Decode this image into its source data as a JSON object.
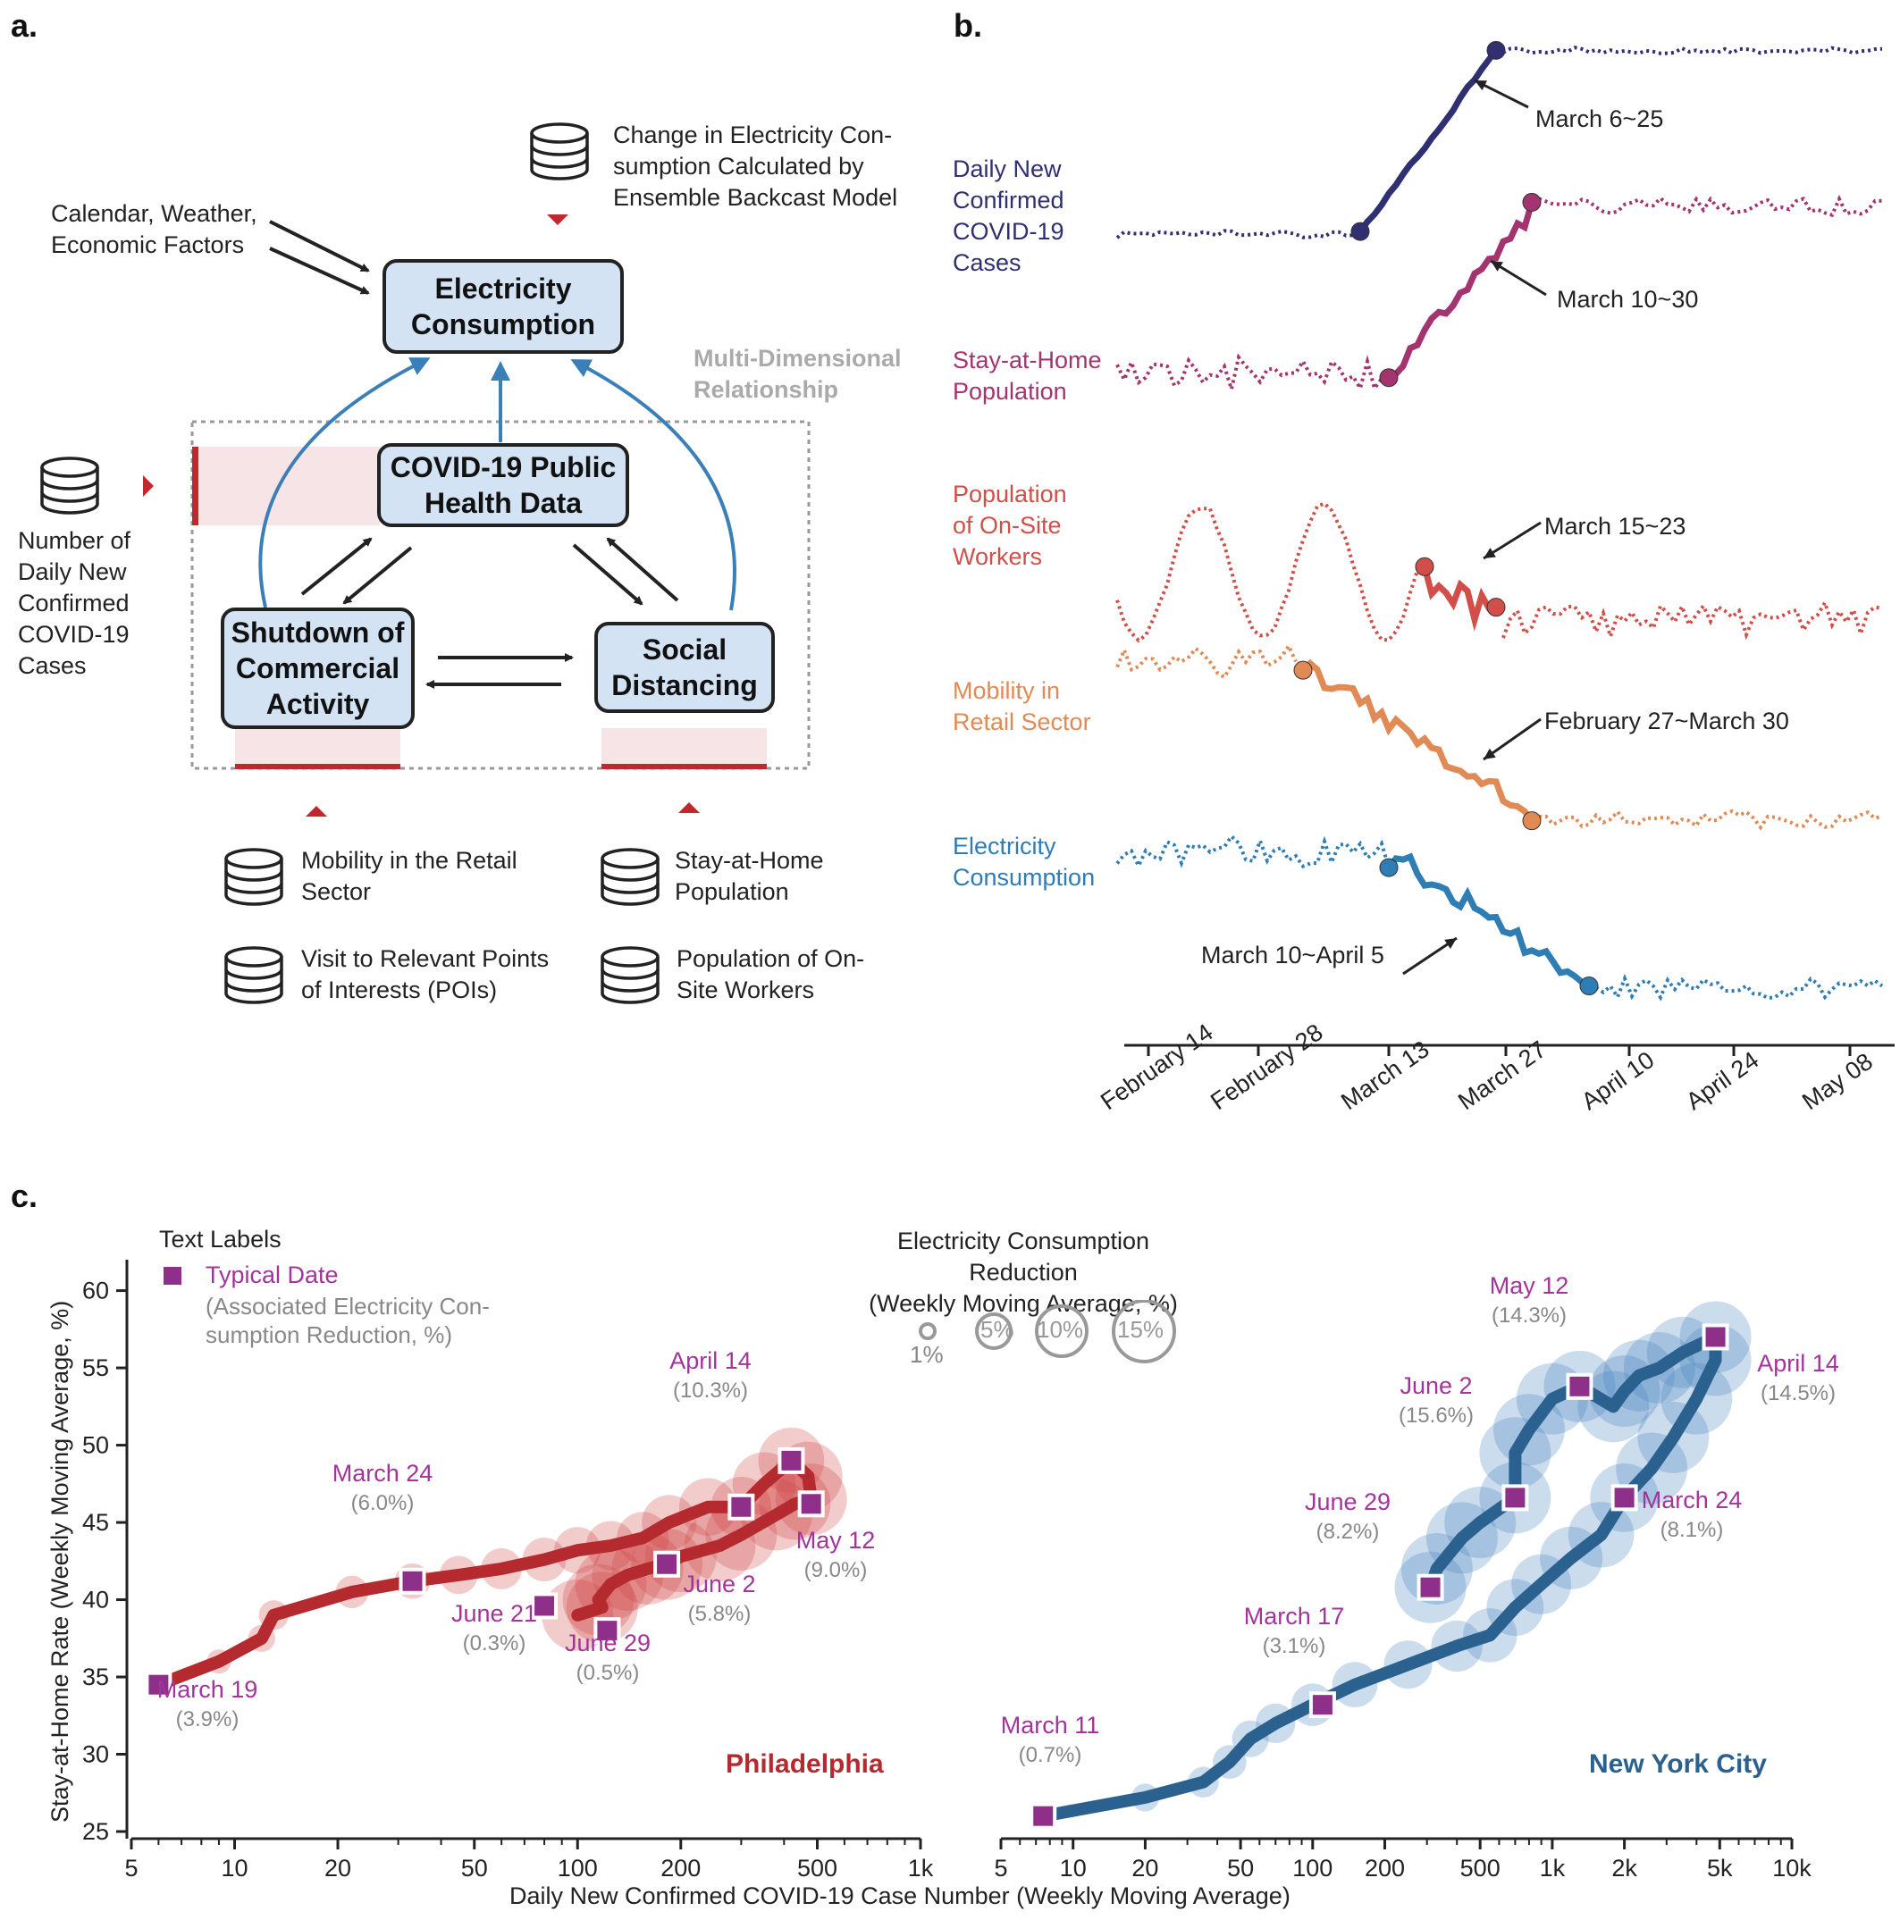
{
  "panel_a": {
    "label": "a.",
    "external_input": "Calendar, Weather,\nEconomic Factors",
    "top_source": "Change in Electricity Con-\nsumption Calculated by\nEnsemble Backcast Model",
    "electricity_box": "Electricity\nConsumption",
    "multi_dim_label": "Multi-Dimensional\nRelationship",
    "covid_box": "COVID-19 Public\nHealth Data",
    "shutdown_box": "Shutdown of\nCommercial\nActivity",
    "social_box": "Social\nDistancing",
    "left_source": "Number of\nDaily New\nConfirmed\nCOVID-19\nCases",
    "sources": [
      "Mobility in the Retail\nSector",
      "Stay-at-Home\nPopulation",
      "Visit to Relevant Points\nof Interests (POIs)",
      "Population of On-\nSite Workers"
    ],
    "colors": {
      "box_fill": "#d3e3f3",
      "arrow_blue": "#3a7fb8",
      "marker_red": "#c0282d",
      "band_pink": "#f7e4e6"
    }
  },
  "panel_b": {
    "label": "b.",
    "series": [
      {
        "name": "Daily New\nConfirmed\nCOVID-19\nCases",
        "color": "#2f2f72",
        "annotation": "March 6~25"
      },
      {
        "name": "Stay-at-Home\nPopulation",
        "color": "#a3346f",
        "annotation": "March 10~30"
      },
      {
        "name": "Population\nof On-Site\nWorkers",
        "color": "#d24f49",
        "annotation": "March 15~23"
      },
      {
        "name": "Mobility in\nRetail Sector",
        "color": "#e08a55",
        "annotation": "February 27~March 30"
      },
      {
        "name": "Electricity\nConsumption",
        "color": "#2f7db5",
        "annotation": "March 10~April 5"
      }
    ],
    "x_ticks": [
      "February 14",
      "February 28",
      "March 13",
      "March 27",
      "April 10",
      "April 24",
      "May 08"
    ]
  },
  "panel_c": {
    "label": "c.",
    "legend_title": "Text Labels",
    "legend_typical": "Typical Date",
    "legend_assoc": "(Associated Electricity Con-\nsumption Reduction, %)",
    "size_legend_title": "Electricity Consumption Reduction\n(Weekly Moving Average, %)",
    "size_legend_items": [
      "1%",
      "5%",
      "10%",
      "15%"
    ],
    "y_label": "Stay-at-Home Rate (Weekly Moving Average, %)",
    "x_label": "Daily New Confirmed COVID-19 Case Number (Weekly Moving Average)",
    "y_ticks": [
      "60",
      "55",
      "50",
      "45",
      "40",
      "35",
      "30",
      "25"
    ],
    "x_ticks_left": [
      "5",
      "10",
      "20",
      "50",
      "100",
      "200",
      "500",
      "1k"
    ],
    "x_ticks_right": [
      "5",
      "10",
      "20",
      "50",
      "100",
      "200",
      "500",
      "1k",
      "2k",
      "5k",
      "10k"
    ],
    "cities": [
      "Philadelphia",
      "New York City"
    ]
  },
  "chart_data": [
    {
      "type": "scatter",
      "title": "Philadelphia",
      "xlabel": "Daily New Confirmed COVID-19 Case Number (Weekly Moving Average)",
      "ylabel": "Stay-at-Home Rate (Weekly Moving Average, %)",
      "xscale": "log",
      "xlim": [
        5,
        1000
      ],
      "ylim": [
        25,
        62
      ],
      "color": "#b52a2e",
      "path": [
        [
          6,
          34.5
        ],
        [
          9,
          36
        ],
        [
          12,
          37.5
        ],
        [
          13,
          39
        ],
        [
          22,
          40.5
        ],
        [
          33,
          41.2
        ],
        [
          45,
          41.6
        ],
        [
          60,
          42
        ],
        [
          80,
          42.6
        ],
        [
          100,
          43.2
        ],
        [
          125,
          43.5
        ],
        [
          155,
          44
        ],
        [
          185,
          45
        ],
        [
          240,
          46
        ],
        [
          300,
          46
        ],
        [
          350,
          47.5
        ],
        [
          420,
          49
        ],
        [
          470,
          48
        ],
        [
          480,
          46.5
        ],
        [
          430,
          46.2
        ],
        [
          380,
          45.5
        ],
        [
          300,
          44.2
        ],
        [
          260,
          43.5
        ],
        [
          200,
          42.8
        ],
        [
          182,
          42.3
        ],
        [
          160,
          42
        ],
        [
          140,
          41.6
        ],
        [
          125,
          41
        ],
        [
          115,
          40
        ],
        [
          118,
          39.5
        ],
        [
          100,
          39
        ]
      ],
      "labeled_points": [
        {
          "date": "March 19",
          "reduction": "(3.9%)",
          "x": 6,
          "y": 34.5
        },
        {
          "date": "March 24",
          "reduction": "(6.0%)",
          "x": 33,
          "y": 41.2
        },
        {
          "date": "April 14",
          "reduction": "(10.3%)",
          "x": 420,
          "y": 49
        },
        {
          "date": "May 12",
          "reduction": "(9.0%)",
          "x": 480,
          "y": 46.2
        },
        {
          "date": "June 2",
          "reduction": "(5.8%)",
          "x": 182,
          "y": 42.3
        },
        {
          "date": "June 21",
          "reduction": "(0.3%)",
          "x": 80,
          "y": 39.6
        },
        {
          "date": "June 29",
          "reduction": "(0.5%)",
          "x": 122,
          "y": 38
        },
        {
          "date": "",
          "reduction": "",
          "x": 300,
          "y": 46
        }
      ]
    },
    {
      "type": "scatter",
      "title": "New York City",
      "xlabel": "Daily New Confirmed COVID-19 Case Number (Weekly Moving Average)",
      "ylabel": "Stay-at-Home Rate (Weekly Moving Average, %)",
      "xscale": "log",
      "xlim": [
        5,
        10000
      ],
      "ylim": [
        25,
        62
      ],
      "color": "#2b618f",
      "path": [
        [
          7.5,
          26
        ],
        [
          20,
          27.2
        ],
        [
          35,
          28.2
        ],
        [
          45,
          29.5
        ],
        [
          55,
          31
        ],
        [
          70,
          32
        ],
        [
          100,
          33.2
        ],
        [
          150,
          34.5
        ],
        [
          250,
          35.8
        ],
        [
          400,
          37
        ],
        [
          550,
          37.7
        ],
        [
          700,
          39.5
        ],
        [
          900,
          41
        ],
        [
          1200,
          42.7
        ],
        [
          1600,
          44.2
        ],
        [
          2000,
          46.6
        ],
        [
          2600,
          48.5
        ],
        [
          3200,
          50.5
        ],
        [
          4000,
          53
        ],
        [
          4800,
          55.5
        ],
        [
          4800,
          57
        ],
        [
          3500,
          56
        ],
        [
          2800,
          55
        ],
        [
          2300,
          54.5
        ],
        [
          2000,
          53.5
        ],
        [
          1800,
          52.5
        ],
        [
          1300,
          53.8
        ],
        [
          1000,
          53
        ],
        [
          800,
          51
        ],
        [
          700,
          49.5
        ],
        [
          700,
          46.6
        ],
        [
          500,
          45
        ],
        [
          420,
          44
        ],
        [
          330,
          42
        ],
        [
          310,
          40.8
        ]
      ],
      "labeled_points": [
        {
          "date": "March 11",
          "reduction": "(0.7%)",
          "x": 7.5,
          "y": 26
        },
        {
          "date": "March 17",
          "reduction": "(3.1%)",
          "x": 110,
          "y": 33.2
        },
        {
          "date": "March 24",
          "reduction": "(8.1%)",
          "x": 2000,
          "y": 46.6
        },
        {
          "date": "April 14",
          "reduction": "(14.5%)",
          "x": 4800,
          "y": 57
        },
        {
          "date": "May 12",
          "reduction": "(14.3%)",
          "x": 1300,
          "y": 53.8
        },
        {
          "date": "June 2",
          "reduction": "(15.6%)",
          "x": 700,
          "y": 46.6
        },
        {
          "date": "June 29",
          "reduction": "(8.2%)",
          "x": 310,
          "y": 40.8
        }
      ]
    }
  ]
}
